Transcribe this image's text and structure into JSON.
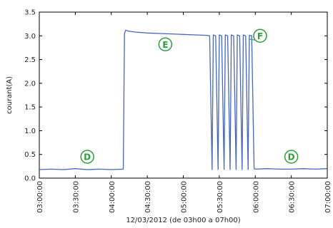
{
  "chart_data": {
    "type": "line",
    "title": "",
    "xlabel": "12/03/2012 (de 03h00 a 07h00)",
    "ylabel": "courant(A)",
    "xlim": [
      "03:00:00",
      "07:00:00"
    ],
    "ylim": [
      0.0,
      3.5
    ],
    "xticks": [
      "03:00:00",
      "03:30:00",
      "04:00:00",
      "04:30:00",
      "05:00:00",
      "05:30:00",
      "06:00:00",
      "06:30:00",
      "07:00:00"
    ],
    "yticks": [
      "0.0",
      "0.5",
      "1.0",
      "1.5",
      "2.0",
      "2.5",
      "3.0",
      "3.5"
    ],
    "grid": false,
    "series": [
      {
        "color": "#4466bb",
        "x": [
          "03:00:00",
          "03:10:00",
          "03:20:00",
          "03:30:00",
          "03:40:00",
          "03:50:00",
          "04:00:00",
          "04:10:00",
          "04:11:00",
          "04:12:00",
          "04:14:00",
          "04:20:00",
          "04:30:00",
          "04:40:00",
          "04:50:00",
          "05:00:00",
          "05:10:00",
          "05:20:00",
          "05:22:00",
          "05:24:00",
          "05:25:00",
          "05:27:00",
          "05:29:00",
          "05:30:00",
          "05:32:00",
          "05:34:00",
          "05:35:00",
          "05:37:00",
          "05:39:00",
          "05:40:00",
          "05:42:00",
          "05:44:00",
          "05:45:00",
          "05:47:00",
          "05:49:00",
          "05:50:00",
          "05:52:00",
          "05:54:00",
          "05:55:00",
          "05:57:00",
          "05:59:00",
          "06:00:00",
          "06:10:00",
          "06:20:00",
          "06:30:00",
          "06:40:00",
          "06:50:00",
          "07:00:00"
        ],
        "y": [
          0.18,
          0.19,
          0.18,
          0.2,
          0.18,
          0.19,
          0.18,
          0.19,
          3.05,
          3.12,
          3.1,
          3.08,
          3.06,
          3.05,
          3.04,
          3.03,
          3.02,
          3.01,
          3.0,
          0.18,
          3.02,
          3.0,
          0.18,
          3.02,
          3.0,
          0.18,
          3.02,
          3.0,
          0.18,
          3.02,
          3.0,
          0.18,
          3.02,
          3.0,
          0.18,
          3.02,
          3.0,
          0.18,
          3.01,
          3.0,
          0.2,
          0.19,
          0.2,
          0.19,
          0.19,
          0.2,
          0.19,
          0.2
        ]
      }
    ],
    "annotations": [
      {
        "text": "D",
        "x": "03:40:00",
        "y": 0.45
      },
      {
        "text": "E",
        "x": "04:45:00",
        "y": 2.82
      },
      {
        "text": "F",
        "x": "06:04:00",
        "y": 3.0
      },
      {
        "text": "D",
        "x": "06:30:00",
        "y": 0.45
      }
    ],
    "annotation_color": "#2e9e3e"
  }
}
